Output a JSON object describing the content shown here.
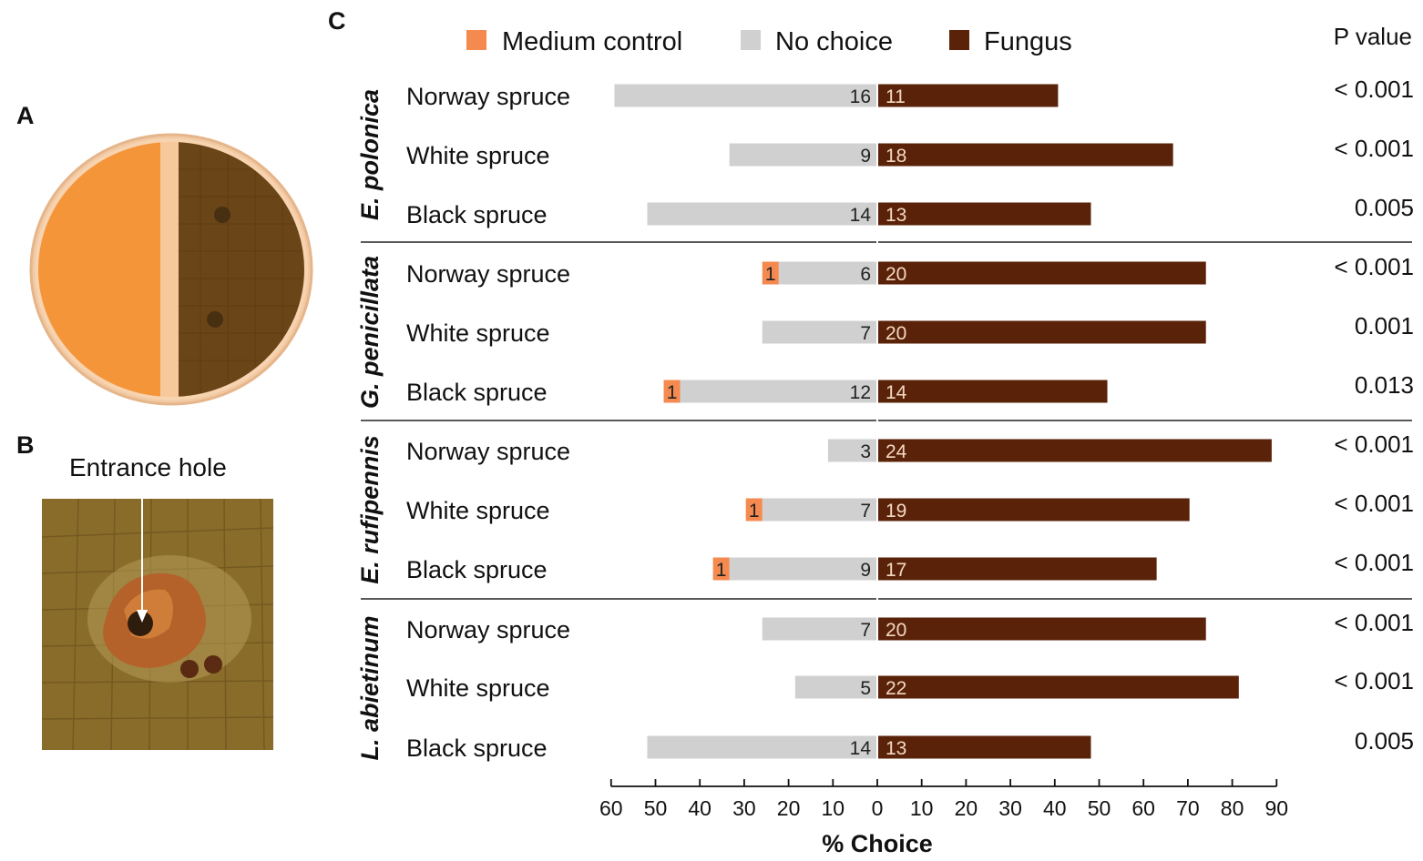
{
  "panels": {
    "a_label": "A",
    "b_label": "B",
    "c_label": "C"
  },
  "photo_b": {
    "annotation": "Entrance hole"
  },
  "colors": {
    "medium_control": "#f58a50",
    "no_choice": "#d0d0d0",
    "fungus": "#5a2309",
    "agar_orange": "#f39a3e",
    "fungus_plate": "#6b4417"
  },
  "chart_data": {
    "type": "bar",
    "orientation": "horizontal-diverging",
    "xlabel": "% Choice",
    "pvalue_header": "P value",
    "left_ticks": [
      60,
      50,
      40,
      30,
      20,
      10,
      0
    ],
    "right_ticks": [
      10,
      20,
      30,
      40,
      50,
      60,
      70,
      80,
      90
    ],
    "xlim_left": [
      0,
      60
    ],
    "xlim_right": [
      0,
      90
    ],
    "legend": [
      {
        "name": "Medium control",
        "color": "#f58a50"
      },
      {
        "name": "No choice",
        "color": "#d0d0d0"
      },
      {
        "name": "Fungus",
        "color": "#5a2309"
      }
    ],
    "groups": [
      {
        "species": "E. polonica",
        "rows": [
          {
            "label": "Norway spruce",
            "medium_control": 0,
            "no_choice": 16,
            "fungus": 11,
            "p_value": "< 0.001"
          },
          {
            "label": "White spruce",
            "medium_control": 0,
            "no_choice": 9,
            "fungus": 18,
            "p_value": "< 0.001"
          },
          {
            "label": "Black spruce",
            "medium_control": 0,
            "no_choice": 14,
            "fungus": 13,
            "p_value": "0.005"
          }
        ]
      },
      {
        "species": "G. penicillata",
        "rows": [
          {
            "label": "Norway spruce",
            "medium_control": 1,
            "no_choice": 6,
            "fungus": 20,
            "p_value": "< 0.001"
          },
          {
            "label": "White spruce",
            "medium_control": 0,
            "no_choice": 7,
            "fungus": 20,
            "p_value": "0.001"
          },
          {
            "label": "Black spruce",
            "medium_control": 1,
            "no_choice": 12,
            "fungus": 14,
            "p_value": "0.013"
          }
        ]
      },
      {
        "species": "E. rufipennis",
        "rows": [
          {
            "label": "Norway spruce",
            "medium_control": 0,
            "no_choice": 3,
            "fungus": 24,
            "p_value": "< 0.001"
          },
          {
            "label": "White spruce",
            "medium_control": 1,
            "no_choice": 7,
            "fungus": 19,
            "p_value": "< 0.001"
          },
          {
            "label": "Black spruce",
            "medium_control": 1,
            "no_choice": 9,
            "fungus": 17,
            "p_value": "< 0.001"
          }
        ]
      },
      {
        "species": "L. abietinum",
        "rows": [
          {
            "label": "Norway spruce",
            "medium_control": 0,
            "no_choice": 7,
            "fungus": 20,
            "p_value": "< 0.001"
          },
          {
            "label": "White spruce",
            "medium_control": 0,
            "no_choice": 5,
            "fungus": 22,
            "p_value": "< 0.001"
          },
          {
            "label": "Black spruce",
            "medium_control": 0,
            "no_choice": 14,
            "fungus": 13,
            "p_value": "0.005"
          }
        ]
      }
    ]
  }
}
